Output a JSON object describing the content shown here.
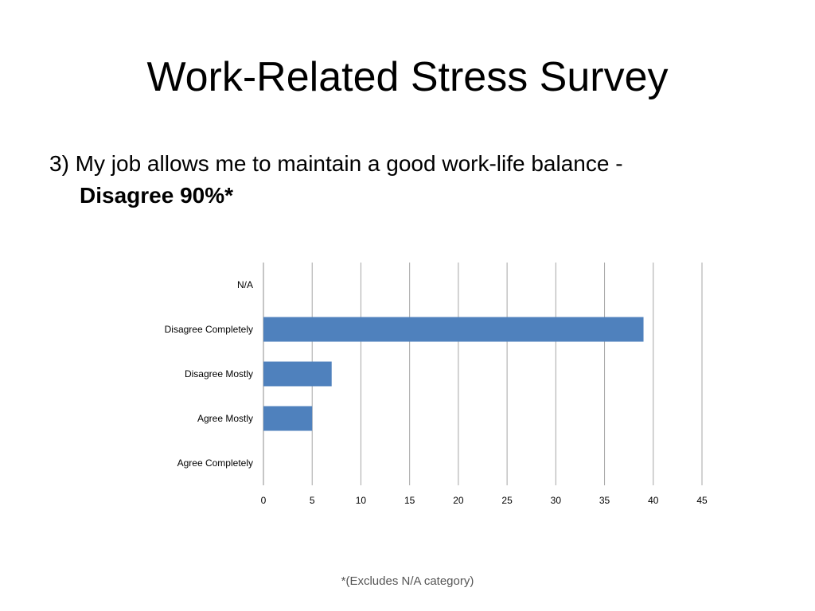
{
  "slide": {
    "title": "Work-Related Stress Survey",
    "question_text": "3) My job allows me to maintain a good work-life balance -",
    "answer_text": "Disagree 90%*",
    "footnote": "*(Excludes N/A category)"
  },
  "chart_data": {
    "type": "bar",
    "orientation": "horizontal",
    "categories": [
      "N/A",
      "Disagree Completely",
      "Disagree Mostly",
      "Agree Mostly",
      "Agree Completely"
    ],
    "values": [
      0,
      39,
      7,
      5,
      0
    ],
    "xlim": [
      0,
      45
    ],
    "x_ticks": [
      0,
      5,
      10,
      15,
      20,
      25,
      30,
      35,
      40,
      45
    ],
    "grid": true,
    "legend": "none",
    "bar_color": "#4F81BD"
  }
}
